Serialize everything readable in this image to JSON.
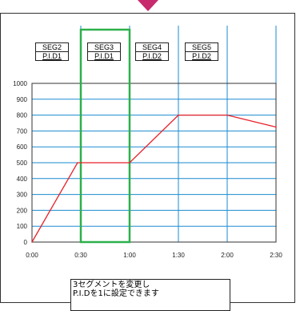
{
  "segments": [
    {
      "seg": "SEG2",
      "pid": "P.I.D1"
    },
    {
      "seg": "SEG3",
      "pid": "P.I.D1"
    },
    {
      "seg": "SEG4",
      "pid": "P.I.D2"
    },
    {
      "seg": "SEG5",
      "pid": "P.I.D2"
    }
  ],
  "note": {
    "line1": "3セグメントを変更し",
    "line2": "P.I.Dを1に設定できます"
  },
  "colors": {
    "line": "#e8202a",
    "grid": "#1a8bd0",
    "highlight": "#2db04a",
    "arrow": "#c82a6e"
  },
  "chart_data": {
    "type": "line",
    "x_ticks": [
      "0:00",
      "0:30",
      "1:00",
      "1:30",
      "2:00",
      "2:30"
    ],
    "y_ticks": [
      "0",
      "100",
      "200",
      "300",
      "400",
      "500",
      "600",
      "700",
      "800",
      "900",
      "1000"
    ],
    "ylim": [
      0,
      1000
    ],
    "xlim": [
      0,
      150
    ],
    "series": [
      {
        "x": [
          0,
          28,
          60,
          90,
          120,
          150
        ],
        "y": [
          0,
          500,
          500,
          800,
          800,
          725
        ]
      }
    ],
    "highlight_segment": 1
  }
}
